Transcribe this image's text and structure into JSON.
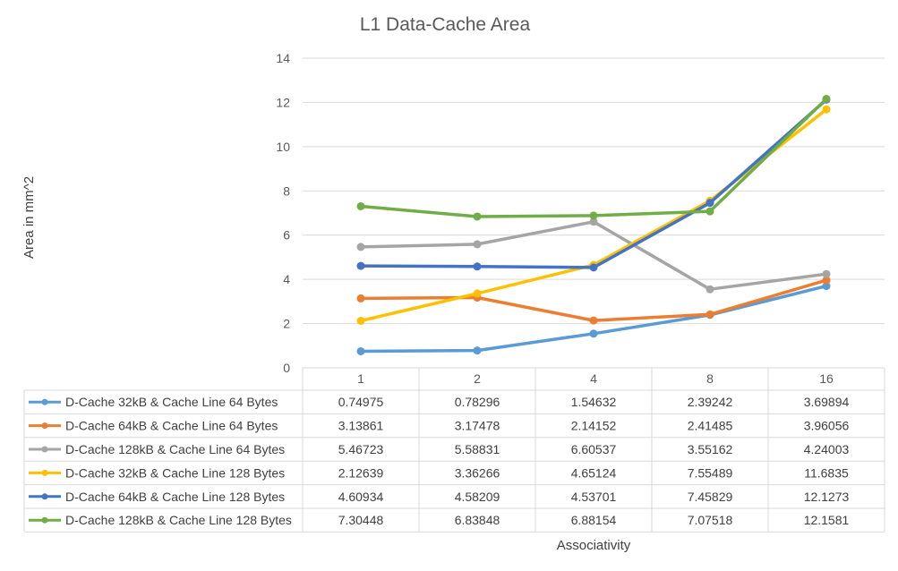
{
  "chart_data": {
    "type": "line",
    "title": "L1 Data-Cache Area",
    "xlabel": "Associativity",
    "ylabel": "Area in mm^2",
    "categories": [
      "1",
      "2",
      "4",
      "8",
      "16"
    ],
    "ylim": [
      0,
      14
    ],
    "yticks": [
      0,
      2,
      4,
      6,
      8,
      10,
      12,
      14
    ],
    "grid": true,
    "legend": "data-table",
    "series": [
      {
        "name": "D-Cache 32kB & Cache Line 64 Bytes",
        "color": "#5b9bd5",
        "values": [
          0.74975,
          0.78296,
          1.54632,
          2.39242,
          3.69894
        ]
      },
      {
        "name": "D-Cache 64kB & Cache Line 64 Bytes",
        "color": "#ed7d31",
        "values": [
          3.13861,
          3.17478,
          2.14152,
          2.41485,
          3.96056
        ]
      },
      {
        "name": "D-Cache 128kB & Cache Line 64 Bytes",
        "color": "#a5a5a5",
        "values": [
          5.46723,
          5.58831,
          6.60537,
          3.55162,
          4.24003
        ]
      },
      {
        "name": "D-Cache 32kB & Cache Line 128 Bytes",
        "color": "#ffc000",
        "values": [
          2.12639,
          3.36266,
          4.65124,
          7.55489,
          11.6835
        ]
      },
      {
        "name": "D-Cache 64kB & Cache Line 128 Bytes",
        "color": "#4472c4",
        "values": [
          4.60934,
          4.58209,
          4.53701,
          7.45829,
          12.1273
        ]
      },
      {
        "name": "D-Cache 128kB & Cache Line 128 Bytes",
        "color": "#70ad47",
        "values": [
          7.30448,
          6.83848,
          6.88154,
          7.07518,
          12.1581
        ]
      }
    ]
  }
}
